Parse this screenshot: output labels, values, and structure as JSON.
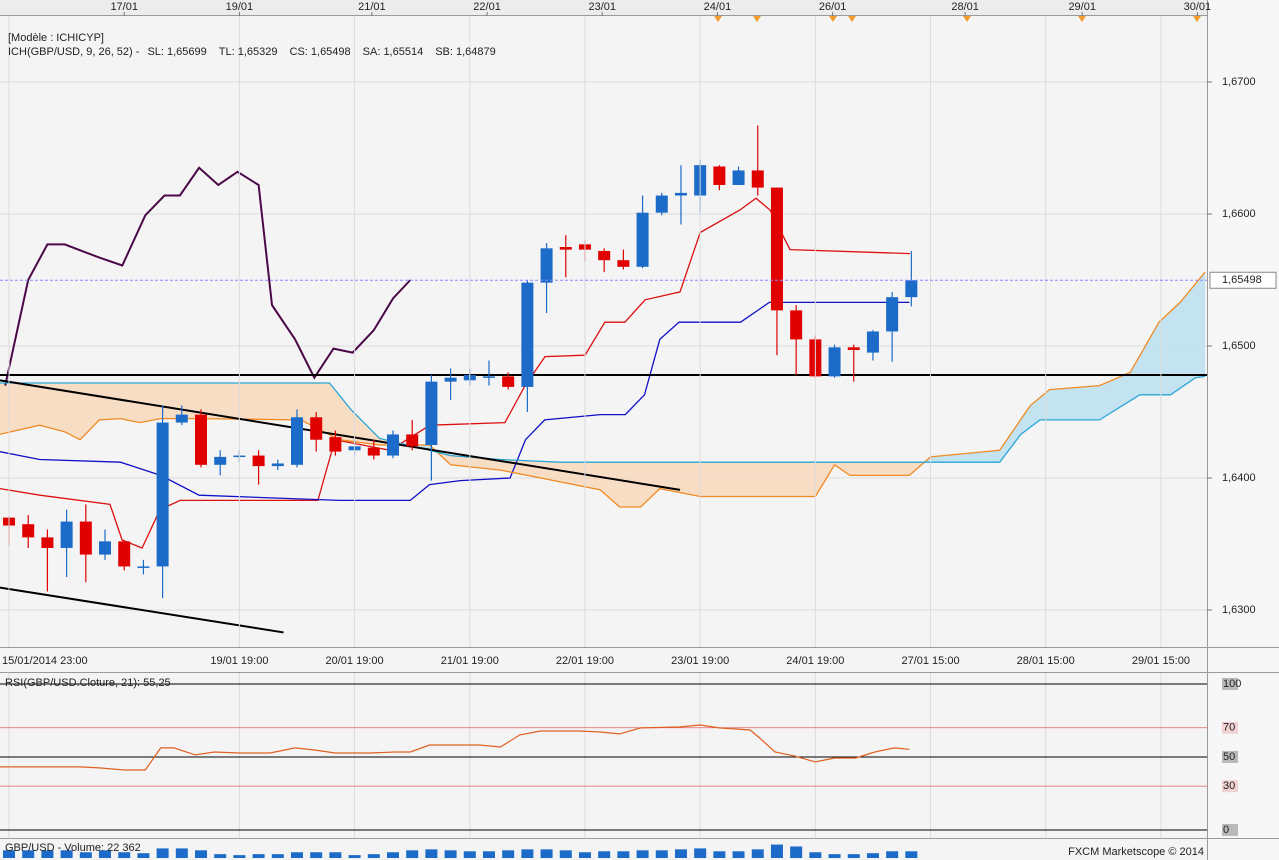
{
  "chart_data": [
    {
      "type": "candlestick",
      "title": "[Modèle : ICHICYP]",
      "subtitle": "ICH(GBP/USD, 9, 26, 52) -",
      "up_color": "#1c6bc8",
      "down_color": "#e00000",
      "open": [
        1.637,
        1.6365,
        1.6355,
        1.6347,
        1.6367,
        1.6342,
        1.6352,
        1.6332,
        1.6333,
        1.6442,
        1.6448,
        1.641,
        1.6416,
        1.6417,
        1.6409,
        1.641,
        1.6446,
        1.6431,
        1.6421,
        1.6423,
        1.6417,
        1.6433,
        1.6425,
        1.6473,
        1.6474,
        1.6476,
        1.6477,
        1.6469,
        1.6548,
        1.6575,
        1.6577,
        1.6572,
        1.6565,
        1.656,
        1.6601,
        1.6614,
        1.6614,
        1.6636,
        1.6622,
        1.6633,
        1.662,
        1.6527,
        1.6505,
        1.6477,
        1.6499,
        1.6495,
        1.6511,
        1.6537
      ],
      "high": [
        1.6371,
        1.6372,
        1.6361,
        1.6376,
        1.638,
        1.6361,
        1.6353,
        1.6338,
        1.6455,
        1.6455,
        1.6452,
        1.6421,
        1.6421,
        1.6421,
        1.6414,
        1.6452,
        1.645,
        1.6436,
        1.6429,
        1.6429,
        1.6436,
        1.6444,
        1.6478,
        1.6483,
        1.6483,
        1.6489,
        1.648,
        1.655,
        1.6578,
        1.6584,
        1.658,
        1.6574,
        1.6573,
        1.6614,
        1.6616,
        1.6637,
        1.6641,
        1.6637,
        1.6636,
        1.6667,
        1.662,
        1.6531,
        1.6508,
        1.6501,
        1.6501,
        1.6512,
        1.6541,
        1.6572
      ],
      "low": [
        1.6349,
        1.6347,
        1.6314,
        1.6325,
        1.6321,
        1.6338,
        1.633,
        1.6327,
        1.6309,
        1.644,
        1.6408,
        1.6402,
        1.6412,
        1.6395,
        1.6406,
        1.6408,
        1.642,
        1.6417,
        1.6417,
        1.6414,
        1.6415,
        1.6421,
        1.6398,
        1.6459,
        1.647,
        1.647,
        1.6467,
        1.645,
        1.6525,
        1.6552,
        1.6564,
        1.6556,
        1.6558,
        1.6559,
        1.6599,
        1.6592,
        1.6601,
        1.6618,
        1.6622,
        1.6614,
        1.6493,
        1.6478,
        1.6476,
        1.6476,
        1.6473,
        1.6489,
        1.6488,
        1.653
      ],
      "close": [
        1.6364,
        1.6355,
        1.6347,
        1.6367,
        1.6342,
        1.6352,
        1.6333,
        1.6333,
        1.6442,
        1.6448,
        1.641,
        1.6416,
        1.6417,
        1.6409,
        1.6411,
        1.6446,
        1.6429,
        1.642,
        1.6424,
        1.6417,
        1.6433,
        1.6424,
        1.6473,
        1.6476,
        1.6478,
        1.6477,
        1.6469,
        1.6548,
        1.6574,
        1.6573,
        1.6573,
        1.6565,
        1.656,
        1.6601,
        1.6614,
        1.6616,
        1.6637,
        1.6622,
        1.6633,
        1.662,
        1.6527,
        1.6505,
        1.6477,
        1.6499,
        1.6497,
        1.6511,
        1.6537,
        1.65498
      ],
      "xlim": [
        -0.47,
        62.4
      ],
      "ylim": [
        1.628,
        1.675
      ],
      "yticks": [
        {
          "value": 1.63,
          "label": "1,6300"
        },
        {
          "value": 1.64,
          "label": "1,6400"
        },
        {
          "value": 1.65,
          "label": "1,6500"
        },
        {
          "value": 1.66,
          "label": "1,6600"
        },
        {
          "value": 1.67,
          "label": "1,6700"
        }
      ],
      "xticks": [
        {
          "value": 0,
          "label": "15/01/2014 23:00"
        },
        {
          "value": 12,
          "label": "19/01 19:00"
        },
        {
          "value": 18,
          "label": "20/01 19:00"
        },
        {
          "value": 24,
          "label": "21/01 19:00"
        },
        {
          "value": 30,
          "label": "22/01 19:00"
        },
        {
          "value": 36,
          "label": "23/01 19:00"
        },
        {
          "value": 42,
          "label": "24/01 19:00"
        },
        {
          "value": 48,
          "label": "27/01 15:00"
        },
        {
          "value": 54,
          "label": "28/01 15:00"
        },
        {
          "value": 60,
          "label": "29/01 15:00"
        }
      ],
      "top_ticks": [
        {
          "value": 6,
          "label": "17/01"
        },
        {
          "value": 12,
          "label": "19/01"
        },
        {
          "value": 18.9,
          "label": "21/01"
        },
        {
          "value": 24.9,
          "label": "22/01"
        },
        {
          "value": 30.9,
          "label": "23/01"
        },
        {
          "value": 36.9,
          "label": "24/01"
        },
        {
          "value": 42.9,
          "label": "26/01"
        },
        {
          "value": 49.8,
          "label": "28/01"
        },
        {
          "value": 55.9,
          "label": "29/01"
        },
        {
          "value": 61.9,
          "label": "30/01"
        }
      ],
      "overlays": [
        {
          "name": "SL: 1,65699",
          "color": "#dd1010",
          "x": [
            -0.47,
            1.61,
            5.26,
            5.89,
            6.93,
            7.86,
            8.91,
            16.09,
            16.98,
            19.84,
            21.93,
            25.83,
            26.88,
            27.92,
            30.0,
            31.04,
            32.08,
            33.13,
            34.95,
            36.0,
            38.07,
            38.91,
            39.64,
            40.68,
            46.93
          ],
          "values": [
            1.6392,
            1.6387,
            1.638,
            1.6353,
            1.6347,
            1.6376,
            1.6383,
            1.6383,
            1.6429,
            1.6421,
            1.644,
            1.6442,
            1.647,
            1.6492,
            1.6493,
            1.6518,
            1.6518,
            1.6535,
            1.6541,
            1.6586,
            1.6603,
            1.6612,
            1.6603,
            1.6573,
            1.657
          ]
        },
        {
          "name": "TL: 1,65329",
          "color": "#1010c8",
          "x": [
            -0.5,
            1.6,
            5.8,
            7.9,
            9.9,
            17.2,
            20.9,
            21.9,
            23.5,
            26.1,
            26.9,
            27.9,
            30.8,
            32.1,
            33.1,
            33.9,
            34.9,
            38.1,
            39.6,
            46.9
          ],
          "values": [
            1.642,
            1.6414,
            1.6412,
            1.6402,
            1.6387,
            1.6383,
            1.6383,
            1.6395,
            1.6398,
            1.64,
            1.6429,
            1.6444,
            1.6448,
            1.6448,
            1.6463,
            1.6505,
            1.6518,
            1.6518,
            1.6533,
            1.6533
          ]
        },
        {
          "name": "CS: 1,65498",
          "color": "#4a0848",
          "x": [
            -0.2,
            1.0,
            2.0,
            2.9,
            4.7,
            5.9,
            7.1,
            8.1,
            8.9,
            9.9,
            10.9,
            11.9,
            13.0,
            13.7,
            14.9,
            15.9,
            16.9,
            17.9,
            19.0,
            20.0,
            20.9
          ],
          "values": [
            1.647,
            1.655,
            1.6577,
            1.6577,
            1.6567,
            1.6561,
            1.6599,
            1.6614,
            1.6614,
            1.6635,
            1.6622,
            1.6632,
            1.6622,
            1.6531,
            1.6505,
            1.6476,
            1.6498,
            1.6495,
            1.6512,
            1.6536,
            1.655
          ]
        },
        {
          "name": "SA: 1,65514",
          "color": "#f08a24",
          "x": [
            -0.5,
            1.6,
            2.9,
            3.7,
            4.7,
            5.8,
            6.8,
            7.9,
            9.9,
            15.2,
            17.2,
            19.3,
            21.9,
            23.0,
            25.6,
            27.7,
            30.8,
            31.8,
            32.9,
            33.9,
            36.0,
            39.1,
            42.0,
            43.0,
            43.8,
            46.9,
            48.0,
            51.6,
            53.2,
            54.2,
            56.8,
            58.4,
            59.9,
            61.0,
            62.3
          ],
          "values": [
            1.6433,
            1.644,
            1.6435,
            1.6429,
            1.6444,
            1.6445,
            1.6442,
            1.6445,
            1.6445,
            1.6444,
            1.6429,
            1.6425,
            1.6425,
            1.641,
            1.6406,
            1.64,
            1.6391,
            1.6378,
            1.6378,
            1.6392,
            1.6386,
            1.6386,
            1.6386,
            1.641,
            1.6402,
            1.6402,
            1.6416,
            1.6421,
            1.6455,
            1.6467,
            1.647,
            1.648,
            1.6518,
            1.6533,
            1.6556
          ]
        },
        {
          "name": "SB: 1,64879",
          "color": "#2aa6d6",
          "x": [
            -0.5,
            16.7,
            17.8,
            19.3,
            21.9,
            23.0,
            25.6,
            28.7,
            46.4,
            51.6,
            52.7,
            53.7,
            56.8,
            58.9,
            60.5,
            61.8,
            62.3
          ],
          "values": [
            1.6472,
            1.6472,
            1.6452,
            1.643,
            1.6421,
            1.6417,
            1.6414,
            1.6412,
            1.6412,
            1.6412,
            1.6433,
            1.6444,
            1.6444,
            1.6463,
            1.6463,
            1.6476,
            1.6477
          ]
        }
      ],
      "cloud_between": [
        3,
        4
      ],
      "cloud_colors": [
        "#f7d7b8",
        "#bfe1f1"
      ],
      "hlines": [
        1.6478
      ],
      "trendlines": [
        [
          [
            -0.47,
            1.6474
          ],
          [
            34.95,
            1.6391
          ]
        ],
        [
          [
            -0.47,
            1.6317
          ],
          [
            14.3,
            1.6283
          ]
        ]
      ],
      "last_price": {
        "value": 1.65498,
        "label": "1,65498"
      }
    },
    {
      "type": "line",
      "title": "RSI(GBP/USD.Cloture, 21): 55,25",
      "color": "#e06020",
      "x": [
        -0.5,
        1.6,
        3.7,
        4.7,
        6.0,
        7.1,
        7.9,
        8.6,
        9.7,
        10.7,
        12.0,
        13.6,
        14.9,
        15.9,
        17.0,
        18.8,
        20.1,
        20.9,
        21.9,
        24.5,
        25.6,
        26.6,
        27.7,
        29.7,
        30.8,
        31.8,
        32.9,
        34.9,
        36.0,
        37.0,
        38.6,
        39.1,
        39.9,
        40.9,
        42.0,
        43.0,
        44.1,
        45.1,
        46.1,
        46.9
      ],
      "values": [
        43.2,
        43.2,
        43.2,
        42.5,
        41.1,
        41.1,
        56.2,
        56.2,
        51.4,
        53.4,
        52.7,
        52.7,
        56.2,
        54.8,
        52.7,
        52.7,
        53.4,
        53.4,
        58.2,
        58.2,
        56.8,
        65.1,
        67.8,
        67.8,
        67.1,
        65.8,
        69.9,
        70.5,
        71.9,
        69.9,
        68.5,
        63.0,
        53.4,
        50.7,
        46.6,
        49.3,
        49.3,
        53.4,
        56.2,
        55.25
      ],
      "xlim": [
        -0.47,
        62.4
      ],
      "ylim": [
        -4,
        106
      ],
      "yticks": [
        100,
        70,
        50,
        30,
        0
      ],
      "level_colors": [
        "#000000",
        "#e06060",
        "#000000",
        "#e06060",
        "#000000"
      ]
    },
    {
      "type": "bar",
      "title": "GBP/USD - Volume: 22 362",
      "credit": "FXCM Marketscope © 2014",
      "color": "#1c6bc8",
      "values": [
        25600,
        25600,
        25600,
        25600,
        19200,
        25600,
        19200,
        16000,
        32000,
        32000,
        25600,
        12800,
        9600,
        12800,
        12800,
        19200,
        19200,
        19200,
        9600,
        12800,
        19200,
        25600,
        28800,
        25600,
        22400,
        22400,
        25600,
        28800,
        28800,
        25600,
        19200,
        22400,
        22400,
        25600,
        25600,
        28800,
        32000,
        22400,
        22400,
        28800,
        44800,
        38400,
        19200,
        12800,
        12800,
        16000,
        22400,
        22362
      ],
      "xlim": [
        -0.47,
        62.4
      ],
      "ylim": [
        0,
        60000
      ]
    }
  ]
}
